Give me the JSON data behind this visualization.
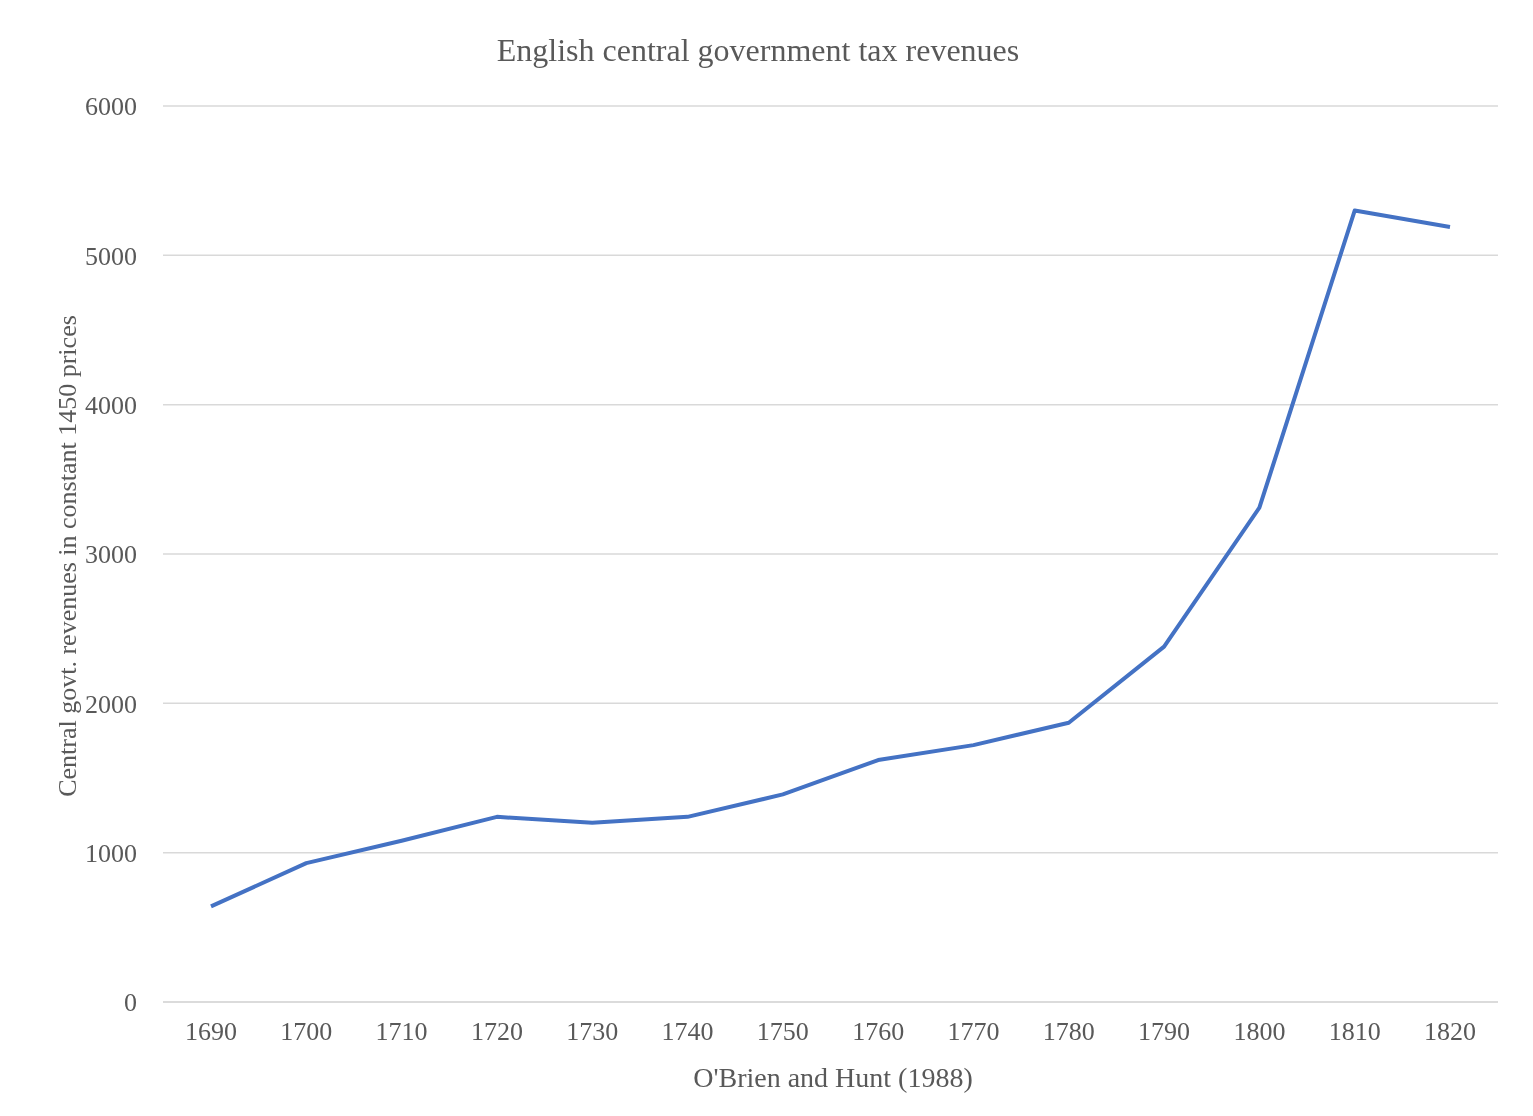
{
  "chart_data": {
    "type": "line",
    "title": "English central government tax revenues",
    "xlabel": "O'Brien and Hunt (1988)",
    "ylabel": "Central govt. revenues in constant 1450 prices",
    "categories": [
      "1690",
      "1700",
      "1710",
      "1720",
      "1730",
      "1740",
      "1750",
      "1760",
      "1770",
      "1780",
      "1790",
      "1800",
      "1810",
      "1820"
    ],
    "series": [
      {
        "color": "#4472c4",
        "values": [
          640,
          930,
          1080,
          1240,
          1200,
          1240,
          1390,
          1620,
          1720,
          1870,
          2380,
          3310,
          5300,
          5190
        ]
      }
    ],
    "ylim": [
      0,
      6000
    ],
    "yticks": [
      0,
      1000,
      2000,
      3000,
      4000,
      5000,
      6000
    ],
    "grid": "y",
    "legend": false,
    "marker": "none",
    "line_style": "solid"
  }
}
